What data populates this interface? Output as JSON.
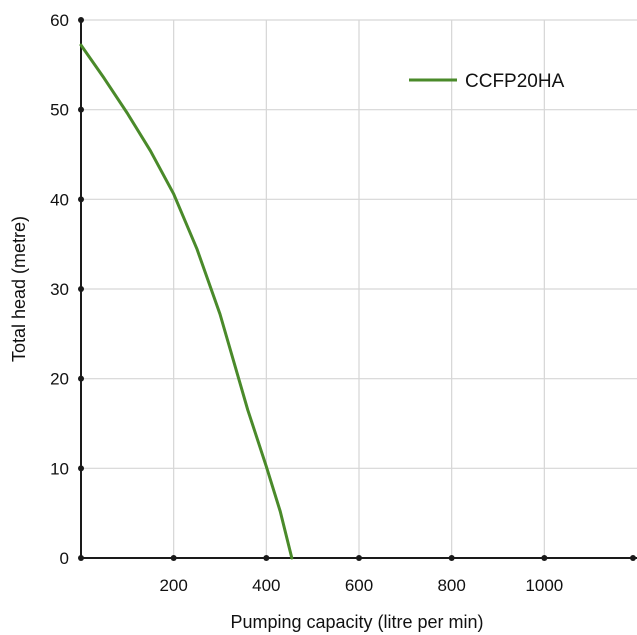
{
  "chart_data": {
    "type": "line",
    "title": "",
    "xlabel": "Pumping capacity (litre per min)",
    "ylabel": "Total head (metre)",
    "xlim": [
      0,
      1200
    ],
    "ylim": [
      0,
      60
    ],
    "x_ticks": [
      200,
      400,
      600,
      800,
      1000
    ],
    "y_ticks": [
      0,
      10,
      20,
      30,
      40,
      50,
      60
    ],
    "grid": true,
    "legend_position": "top-right",
    "series": [
      {
        "name": "CCFP20HA",
        "color": "#4a8a2a",
        "x": [
          0,
          50,
          100,
          150,
          200,
          250,
          300,
          360,
          400,
          430,
          455
        ],
        "y": [
          57.2,
          53.5,
          49.6,
          45.4,
          40.6,
          34.5,
          27.2,
          16.5,
          10.2,
          5.2,
          0
        ]
      }
    ]
  }
}
